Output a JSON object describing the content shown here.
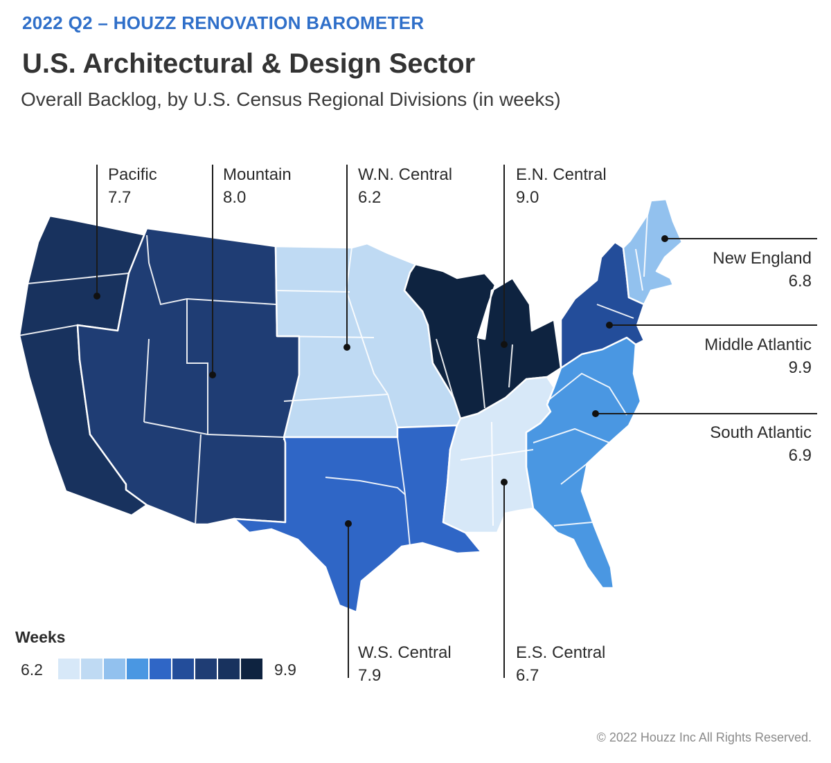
{
  "header": {
    "kicker": "2022 Q2 – HOUZZ RENOVATION BAROMETER",
    "title": "U.S. Architectural & Design Sector",
    "subtitle": "Overall Backlog, by U.S. Census Regional Divisions (in weeks)"
  },
  "regions": {
    "pacific": {
      "name": "Pacific",
      "value": "7.7",
      "color": "#18325e"
    },
    "mountain": {
      "name": "Mountain",
      "value": "8.0",
      "color": "#1f3d74"
    },
    "wn_central": {
      "name": "W.N. Central",
      "value": "6.2",
      "color": "#bfdaf3"
    },
    "en_central": {
      "name": "E.N. Central",
      "value": "9.0",
      "color": "#0e2340"
    },
    "new_england": {
      "name": "New England",
      "value": "6.8",
      "color": "#92c1ee"
    },
    "middle_atlantic": {
      "name": "Middle Atlantic",
      "value": "9.9",
      "color": "#234d9a"
    },
    "south_atlantic": {
      "name": "South Atlantic",
      "value": "6.9",
      "color": "#4a97e2"
    },
    "ws_central": {
      "name": "W.S. Central",
      "value": "7.9",
      "color": "#2f66c6"
    },
    "es_central": {
      "name": "E.S. Central",
      "value": "6.7",
      "color": "#d7e8f8"
    }
  },
  "legend": {
    "title": "Weeks",
    "min": "6.2",
    "max": "9.9",
    "colors": [
      "#d7e8f8",
      "#bfdaf3",
      "#92c1ee",
      "#4a97e2",
      "#2f66c6",
      "#234d9a",
      "#1f3d74",
      "#18325e",
      "#0e2340"
    ]
  },
  "footer": {
    "copyright": "© 2022 Houzz Inc All Rights Reserved."
  }
}
